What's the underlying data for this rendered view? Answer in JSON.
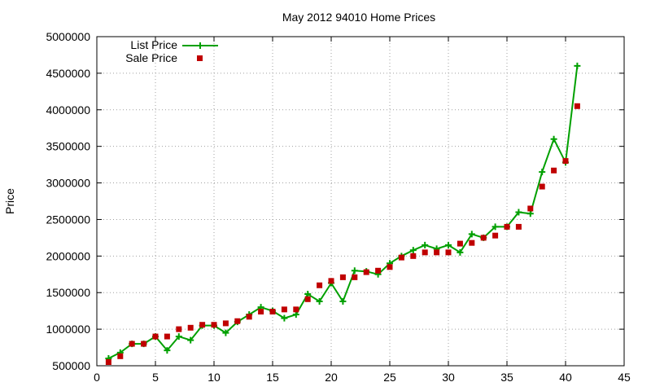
{
  "chart_data": {
    "type": "line",
    "title": "May 2012 94010 Home Prices",
    "xlabel": "",
    "ylabel": "Price",
    "xlim": [
      0,
      45
    ],
    "ylim": [
      500000,
      5000000
    ],
    "xticks": [
      0,
      5,
      10,
      15,
      20,
      25,
      30,
      35,
      40,
      45
    ],
    "yticks": [
      500000,
      1000000,
      1500000,
      2000000,
      2500000,
      3000000,
      3500000,
      4000000,
      4500000,
      5000000
    ],
    "grid": true,
    "legend_position": "top-left",
    "colors": {
      "list": "#00a000",
      "sale": "#c00000"
    },
    "series": [
      {
        "name": "List Price",
        "style": "lines+crosses",
        "x": [
          1,
          2,
          3,
          4,
          5,
          6,
          7,
          8,
          9,
          10,
          11,
          12,
          13,
          14,
          15,
          16,
          17,
          18,
          19,
          20,
          21,
          22,
          23,
          24,
          25,
          26,
          27,
          28,
          29,
          30,
          31,
          32,
          33,
          34,
          35,
          36,
          37,
          38,
          39,
          40,
          41
        ],
        "y": [
          600000,
          680000,
          800000,
          800000,
          900000,
          710000,
          900000,
          850000,
          1050000,
          1050000,
          950000,
          1100000,
          1200000,
          1300000,
          1250000,
          1150000,
          1200000,
          1480000,
          1380000,
          1630000,
          1380000,
          1800000,
          1790000,
          1750000,
          1900000,
          2000000,
          2080000,
          2150000,
          2100000,
          2150000,
          2050000,
          2300000,
          2250000,
          2400000,
          2400000,
          2600000,
          2580000,
          3150000,
          3600000,
          3280000,
          4600000
        ]
      },
      {
        "name": "Sale Price",
        "style": "squares",
        "x": [
          1,
          2,
          3,
          4,
          5,
          6,
          7,
          8,
          9,
          10,
          11,
          12,
          13,
          14,
          15,
          16,
          17,
          18,
          19,
          20,
          21,
          22,
          23,
          24,
          25,
          26,
          27,
          28,
          29,
          30,
          31,
          32,
          33,
          34,
          35,
          36,
          37,
          38,
          39,
          40,
          41
        ],
        "y": [
          550000,
          630000,
          800000,
          800000,
          900000,
          900000,
          1000000,
          1020000,
          1060000,
          1060000,
          1080000,
          1110000,
          1170000,
          1240000,
          1240000,
          1270000,
          1270000,
          1410000,
          1600000,
          1660000,
          1710000,
          1710000,
          1780000,
          1800000,
          1850000,
          1980000,
          2000000,
          2050000,
          2050000,
          2050000,
          2170000,
          2180000,
          2250000,
          2280000,
          2400000,
          2400000,
          2650000,
          2950000,
          3170000,
          3300000,
          4050000
        ]
      }
    ]
  }
}
